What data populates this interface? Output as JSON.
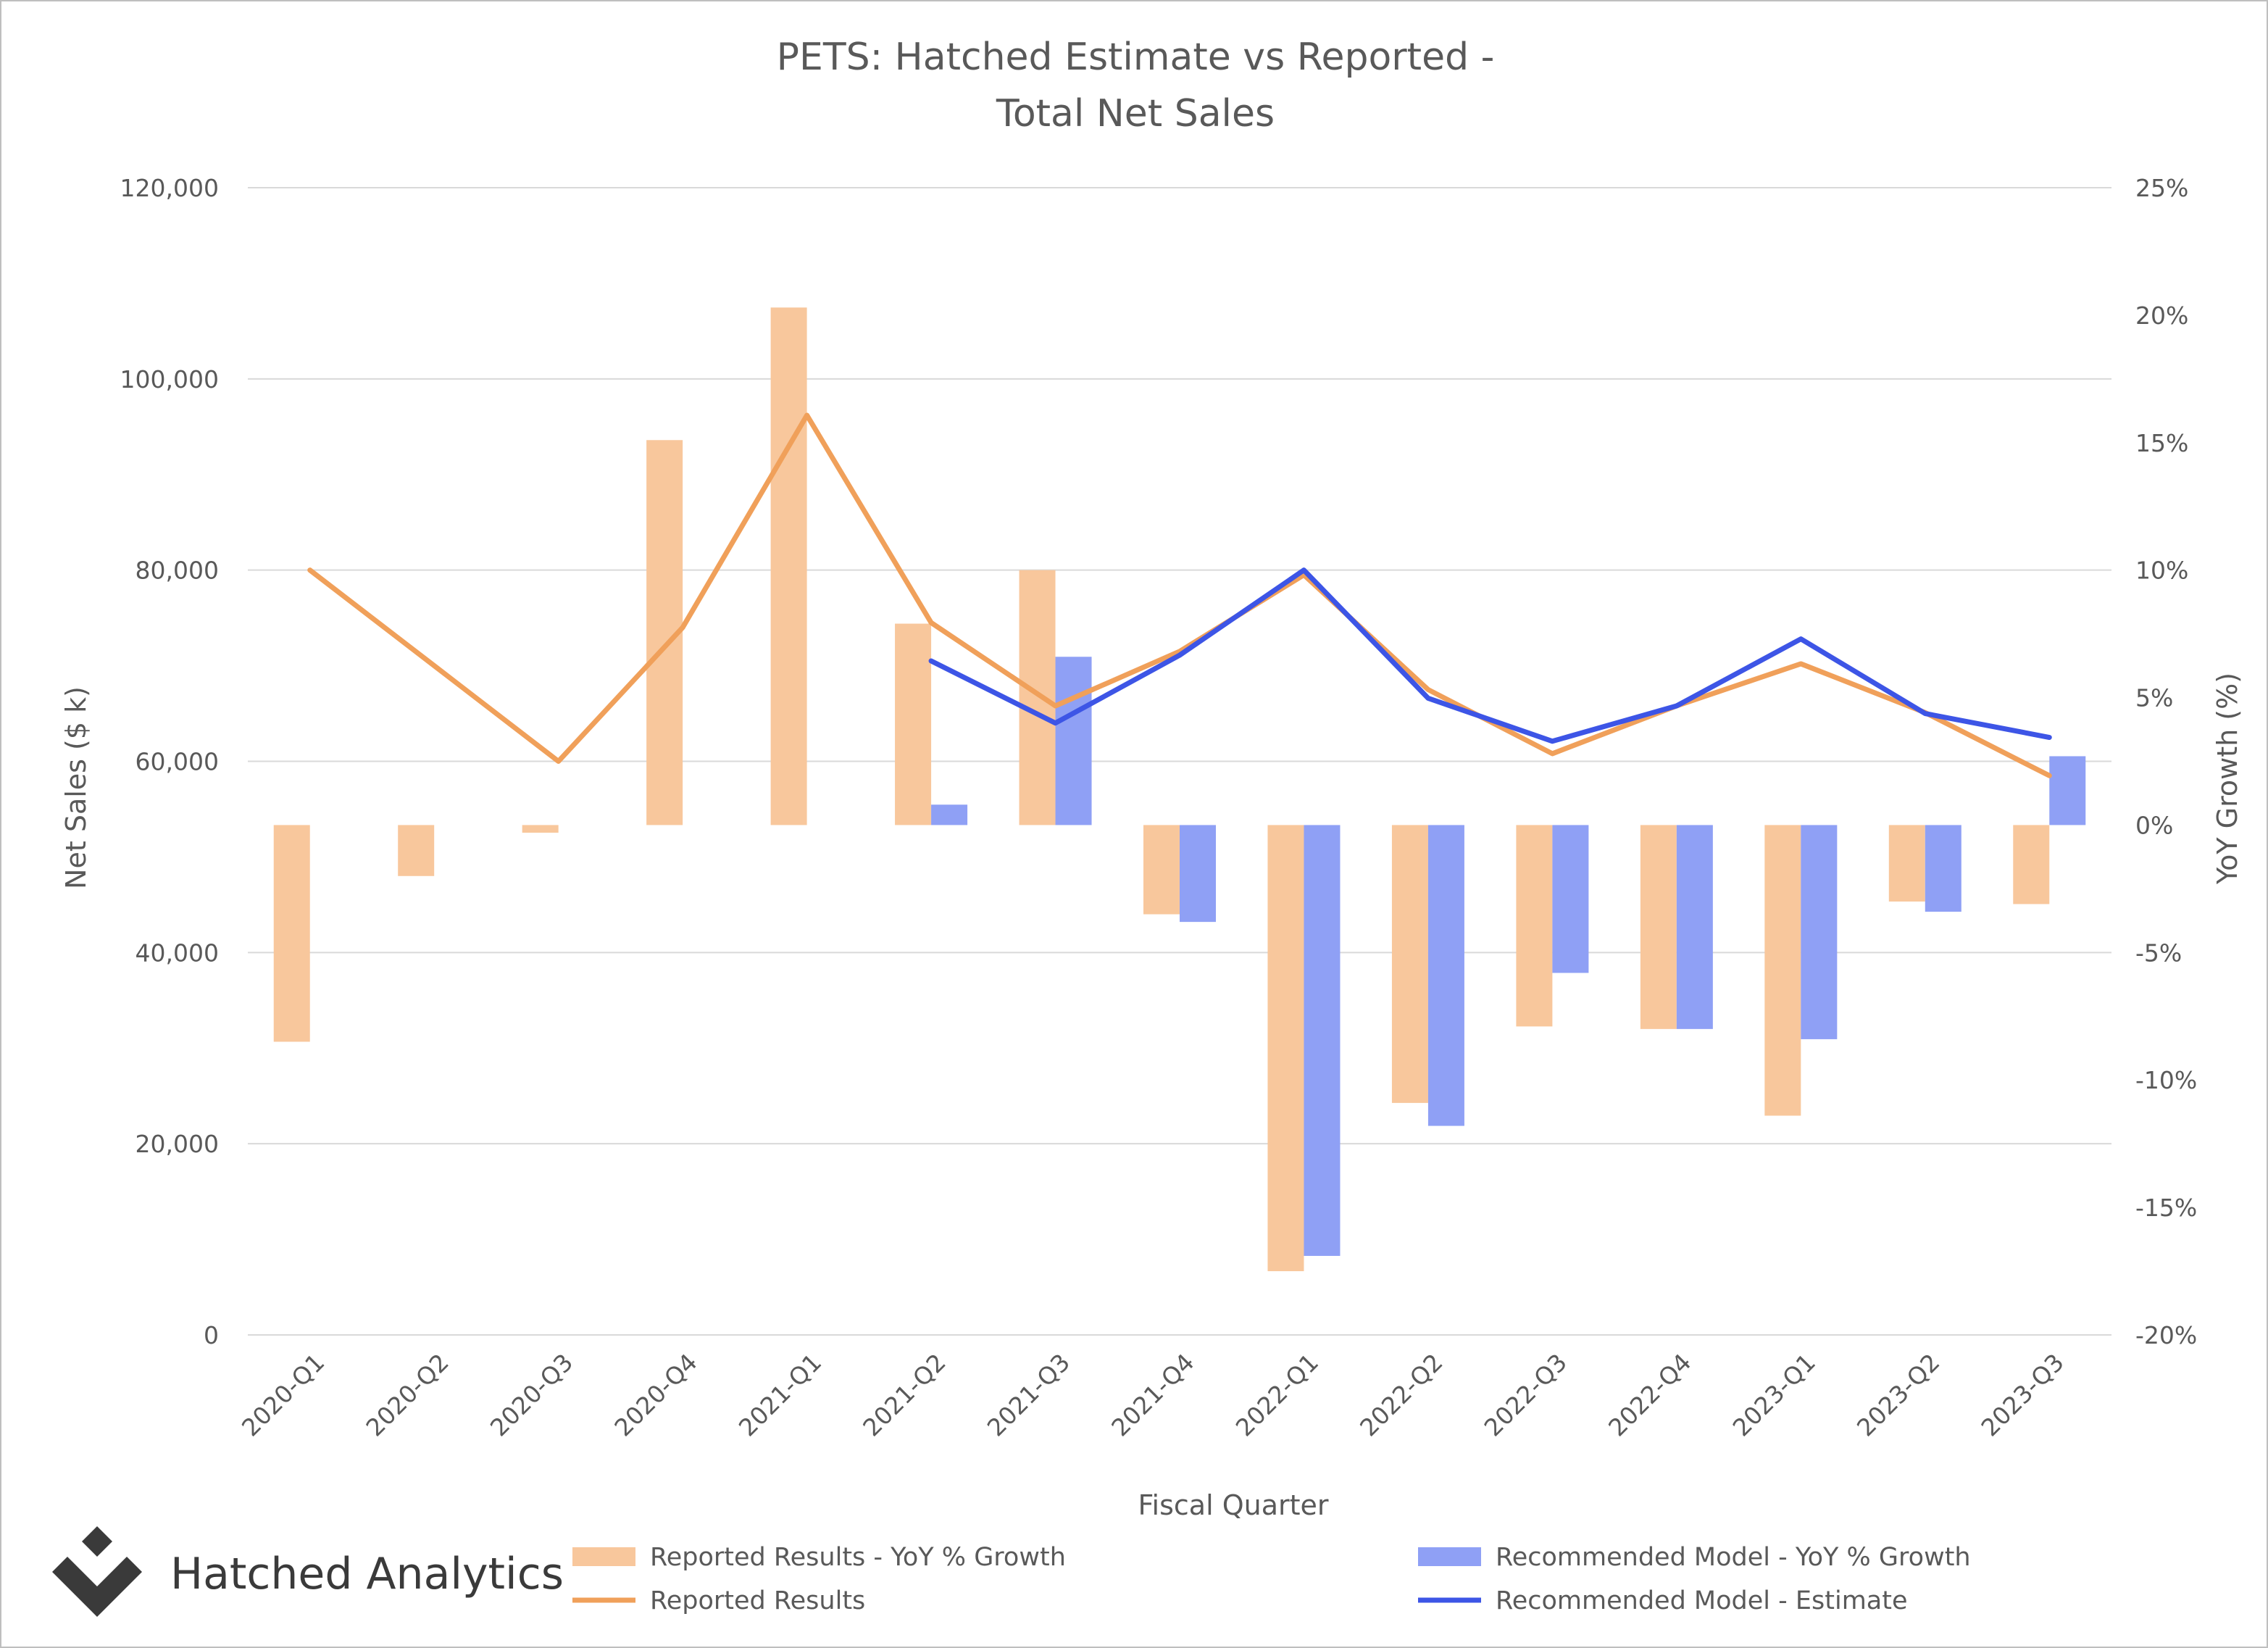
{
  "brand": {
    "name": "Hatched Analytics",
    "logo_icon": "diamond-logo-icon"
  },
  "colors": {
    "reported_bar": "#f8c79c",
    "reported_line": "#f0a05a",
    "recommended_bar": "#8fa0f5",
    "recommended_line": "#3d55e6",
    "grid": "#d9d9d9",
    "text": "#595959"
  },
  "chart_data": {
    "type": "bar",
    "title_lines": [
      "PETS: Hatched Estimate vs Reported -",
      "Total Net Sales"
    ],
    "xlabel": "Fiscal Quarter",
    "ylabel": "Net Sales ($ k)",
    "y2label": "YoY Growth (%)",
    "ylim": [
      0,
      120000
    ],
    "yticks": [
      0,
      20000,
      40000,
      60000,
      80000,
      100000,
      120000
    ],
    "ytick_labels": [
      "0",
      "20,000",
      "40,000",
      "60,000",
      "80,000",
      "100,000",
      "120,000"
    ],
    "y2lim": [
      -20,
      25
    ],
    "y2ticks": [
      -20,
      -15,
      -10,
      -5,
      0,
      5,
      10,
      15,
      20,
      25
    ],
    "y2tick_labels": [
      "-20%",
      "-15%",
      "-10%",
      "-5%",
      "0%",
      "5%",
      "10%",
      "15%",
      "20%",
      "25%"
    ],
    "grid": true,
    "legend_position": "bottom",
    "categories": [
      "2020-Q1",
      "2020-Q2",
      "2020-Q3",
      "2020-Q4",
      "2021-Q1",
      "2021-Q2",
      "2021-Q3",
      "2021-Q4",
      "2022-Q1",
      "2022-Q2",
      "2022-Q3",
      "2022-Q4",
      "2023-Q1",
      "2023-Q2",
      "2023-Q3"
    ],
    "series": [
      {
        "name": "Reported Results - YoY % Growth",
        "kind": "bar",
        "axis": "right",
        "values": [
          -8.5,
          -2.0,
          -0.3,
          15.1,
          20.3,
          7.9,
          10.0,
          -3.5,
          -17.5,
          -10.9,
          -7.9,
          -8.0,
          -11.4,
          -3.0,
          -3.1
        ]
      },
      {
        "name": "Recommended Model - YoY % Growth",
        "kind": "bar",
        "axis": "right",
        "values": [
          null,
          null,
          null,
          null,
          null,
          0.8,
          6.6,
          -3.8,
          -16.9,
          -11.8,
          -5.8,
          -8.0,
          -8.4,
          -3.4,
          2.7
        ]
      },
      {
        "name": "Reported Results",
        "kind": "line",
        "axis": "left",
        "values": [
          80000,
          70000,
          60000,
          74000,
          96200,
          74500,
          65800,
          71500,
          79500,
          67500,
          60800,
          65800,
          70200,
          65100,
          58500
        ]
      },
      {
        "name": "Recommended Model - Estimate",
        "kind": "line",
        "axis": "left",
        "values": [
          null,
          null,
          null,
          null,
          null,
          70500,
          64000,
          71100,
          80000,
          66600,
          62100,
          65800,
          72800,
          65000,
          62500
        ]
      }
    ]
  }
}
